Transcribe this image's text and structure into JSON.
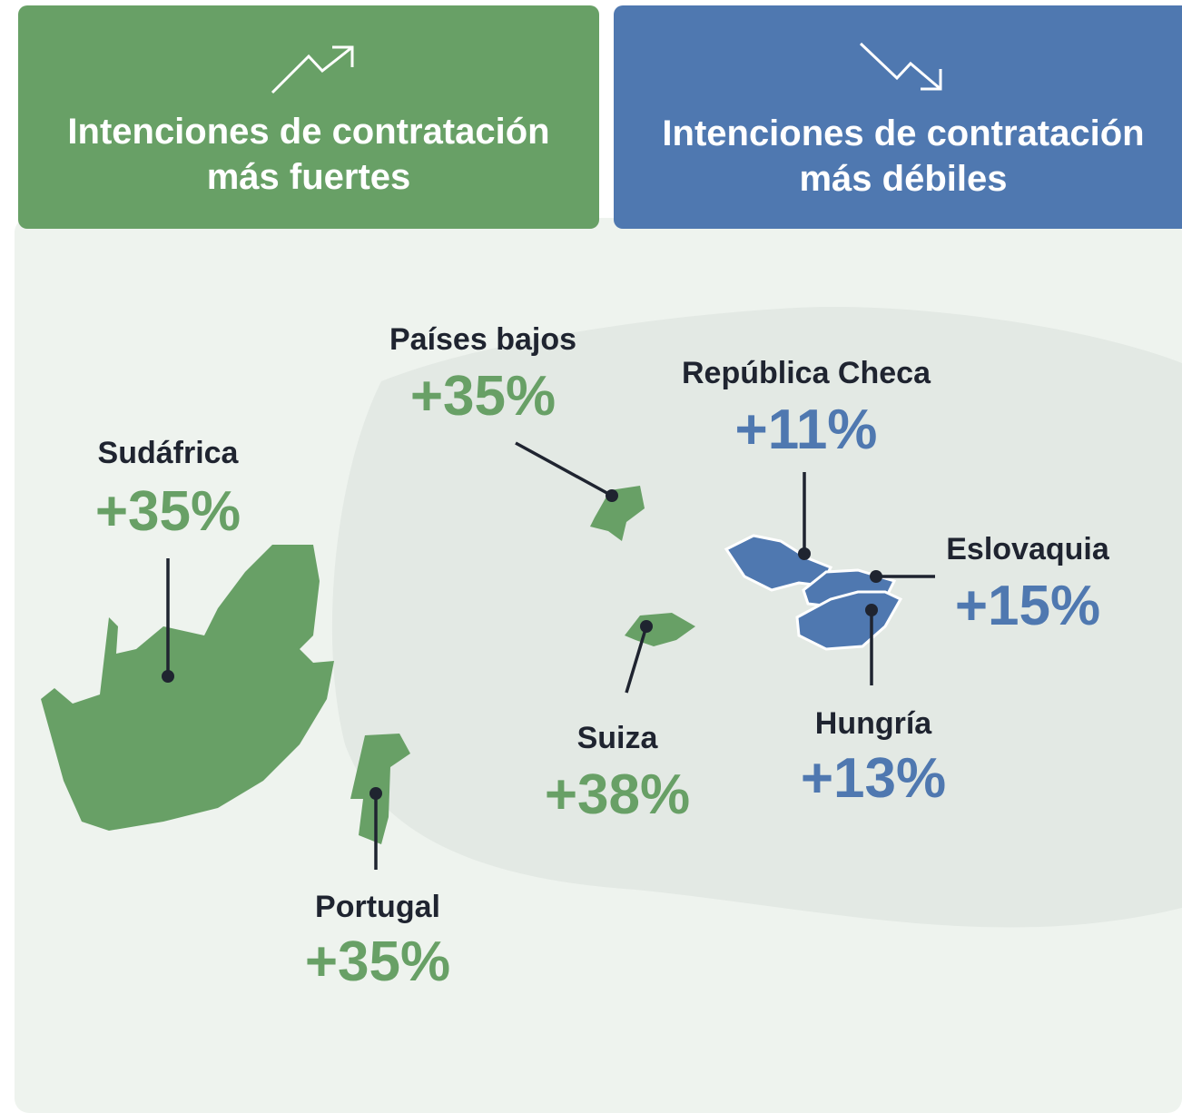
{
  "panels": [
    {
      "title_lines": [
        "Intenciones de contratación",
        "más fuertes"
      ],
      "countries": [
        {
          "name": "Países bajos",
          "change": "+35%"
        },
        {
          "name": "Sudáfrica",
          "change": "+35%"
        },
        {
          "name": "Suiza",
          "change": "+38%"
        },
        {
          "name": "Portugal",
          "change": "+35%"
        }
      ]
    },
    {
      "title_lines": [
        "Intenciones de contratación",
        "más débiles"
      ],
      "countries": [
        {
          "name": "República Checa",
          "change": "+11%"
        },
        {
          "name": "Eslovaquia",
          "change": "+15%"
        },
        {
          "name": "Hungría",
          "change": "+13%"
        }
      ]
    }
  ]
}
